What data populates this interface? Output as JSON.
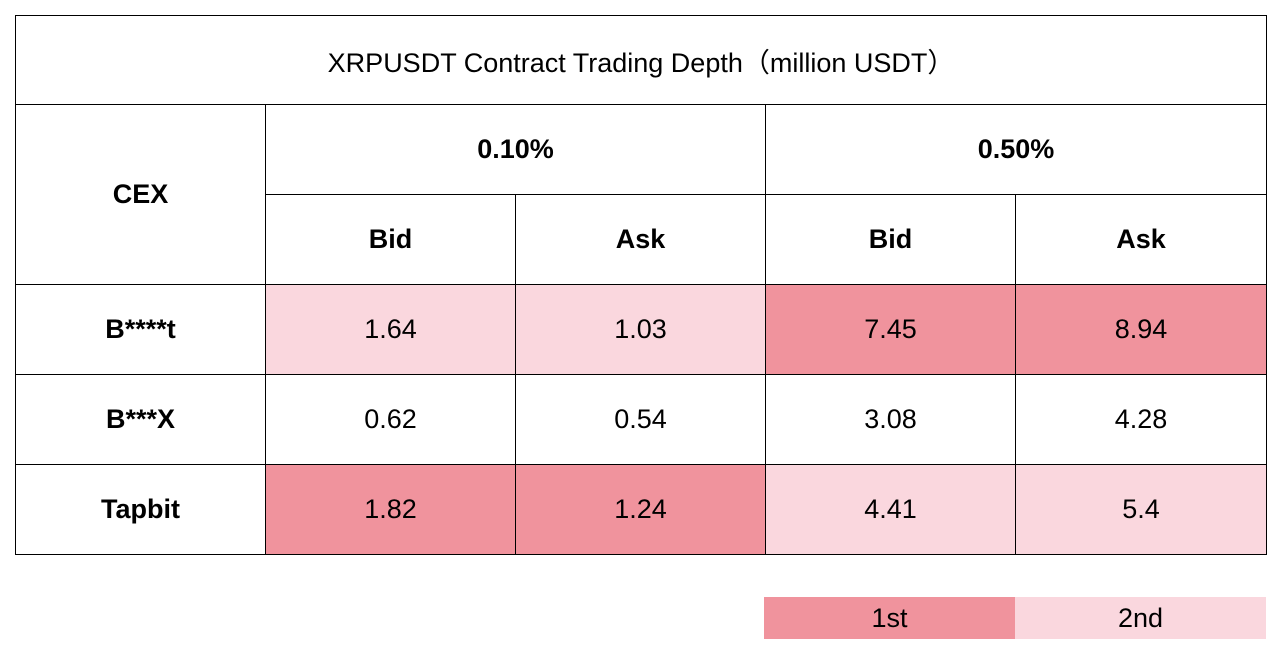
{
  "chart_data": {
    "type": "table",
    "title": "XRPUSDT Contract Trading Depth（million USDT）",
    "header": {
      "row_label": "CEX",
      "groups": [
        "0.10%",
        "0.50%"
      ],
      "subcolumns": [
        "Bid",
        "Ask",
        "Bid",
        "Ask"
      ]
    },
    "rows": [
      {
        "name": "B****t",
        "values": [
          "1.64",
          "1.03",
          "7.45",
          "8.94"
        ],
        "rank": [
          2,
          2,
          1,
          1
        ]
      },
      {
        "name": "B***X",
        "values": [
          "0.62",
          "0.54",
          "3.08",
          "4.28"
        ],
        "rank": [
          0,
          0,
          0,
          0
        ]
      },
      {
        "name": "Tapbit",
        "values": [
          "1.82",
          "1.24",
          "4.41",
          "5.4"
        ],
        "rank": [
          1,
          1,
          2,
          2
        ]
      }
    ],
    "legend": [
      {
        "label": "1st",
        "color": "#f0939d"
      },
      {
        "label": "2nd",
        "color": "#fad7de"
      }
    ]
  }
}
